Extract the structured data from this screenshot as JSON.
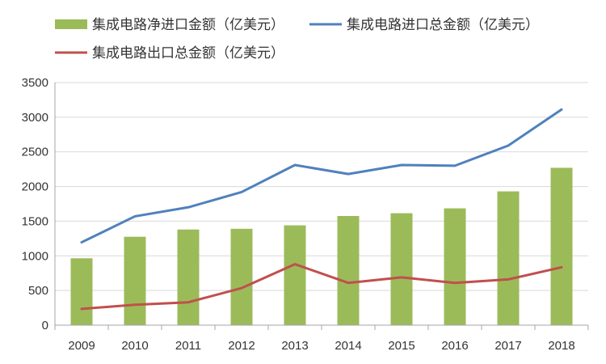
{
  "chart_data": {
    "type": "bar",
    "title": "",
    "xlabel": "",
    "ylabel": "",
    "ylim": [
      0,
      3500
    ],
    "yticks": [
      0,
      500,
      1000,
      1500,
      2000,
      2500,
      3000,
      3500
    ],
    "grid": true,
    "legend_position": "top",
    "categories": [
      "2009",
      "2010",
      "2011",
      "2012",
      "2013",
      "2014",
      "2015",
      "2016",
      "2017",
      "2018"
    ],
    "series": [
      {
        "name": "集成电路净进口金额（亿美元）",
        "kind": "bar",
        "color": "#9bbb59",
        "values": [
          965,
          1275,
          1380,
          1390,
          1440,
          1575,
          1615,
          1685,
          1930,
          2270
        ]
      },
      {
        "name": "集成电路进口总金额（亿美元）",
        "kind": "line",
        "color": "#4f81bd",
        "values": [
          1195,
          1570,
          1700,
          1920,
          2310,
          2180,
          2310,
          2300,
          2590,
          3110
        ]
      },
      {
        "name": "集成电路出口总金额（亿美元）",
        "kind": "line",
        "color": "#c0504d",
        "values": [
          235,
          295,
          330,
          535,
          880,
          610,
          690,
          610,
          660,
          835
        ]
      }
    ]
  }
}
